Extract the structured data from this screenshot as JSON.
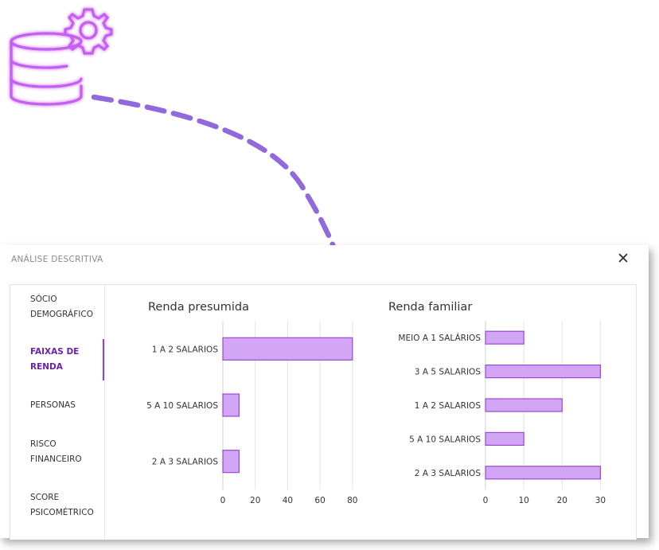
{
  "dialog": {
    "title": "ANÁLISE DESCRITIVA",
    "close_icon": "close-icon"
  },
  "sidebar": {
    "items": [
      {
        "lines": [
          "SÓCIO",
          "DEMOGRÁFICO"
        ],
        "active": false
      },
      {
        "lines": [
          "FAIXAS DE",
          "RENDA"
        ],
        "active": true
      },
      {
        "lines": [
          "PERSONAS"
        ],
        "active": false
      },
      {
        "lines": [
          "RISCO",
          "FINANCEIRO"
        ],
        "active": false
      },
      {
        "lines": [
          "SCORE",
          "PSICOMÉTRICO"
        ],
        "active": false
      }
    ]
  },
  "colors": {
    "accent": "#8e44d8",
    "bar_fill": "#d2a6f5",
    "bar_stroke": "#9a48d6",
    "arrow": "#7c4fd6"
  },
  "decor": {
    "icon": "database-gear-icon"
  },
  "chart_data": [
    {
      "type": "bar",
      "orientation": "horizontal",
      "title": "Renda presumida",
      "categories": [
        "1 A 2 SALARIOS",
        "5 A 10 SALARIOS",
        "2 A 3 SALARIOS"
      ],
      "values": [
        80,
        10,
        10
      ],
      "xlim": [
        0,
        85
      ],
      "xticks": [
        0,
        20,
        40,
        60,
        80
      ],
      "grid": "vertical"
    },
    {
      "type": "bar",
      "orientation": "horizontal",
      "title": "Renda familiar",
      "categories": [
        "MEIO A 1 SALÁRIOS",
        "3 A 5 SALARIOS",
        "1 A 2 SALARIOS",
        "5 A 10 SALARIOS",
        "2 A 3 SALARIOS"
      ],
      "values": [
        10,
        30,
        20,
        10,
        30
      ],
      "xlim": [
        0,
        32
      ],
      "xticks": [
        0,
        10,
        20,
        30
      ],
      "grid": "vertical"
    }
  ]
}
